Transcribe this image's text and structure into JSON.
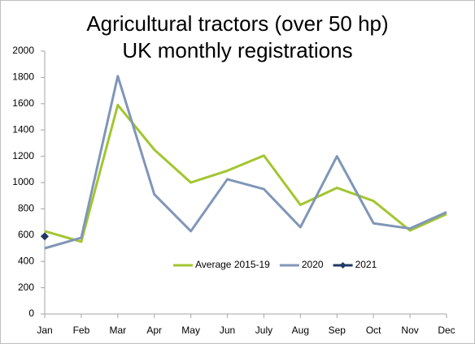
{
  "chart_data": {
    "type": "line",
    "title": "Agricultural tractors (over 50 hp)",
    "subtitle": "UK monthly registrations",
    "categories": [
      "Jan",
      "Feb",
      "Mar",
      "Apr",
      "May",
      "Jun",
      "July",
      "Aug",
      "Sep",
      "Oct",
      "Nov",
      "Dec"
    ],
    "series": [
      {
        "name": "Average 2015-19",
        "color": "#a2c62f",
        "values": [
          630,
          550,
          1590,
          1250,
          1000,
          1090,
          1205,
          830,
          960,
          860,
          635,
          760
        ]
      },
      {
        "name": "2020",
        "color": "#8096b8",
        "values": [
          500,
          580,
          1810,
          910,
          630,
          1025,
          950,
          660,
          1200,
          690,
          650,
          775
        ]
      },
      {
        "name": "2021",
        "color": "#1f3864",
        "marker": "diamond",
        "values": [
          590,
          null,
          null,
          null,
          null,
          null,
          null,
          null,
          null,
          null,
          null,
          null
        ]
      }
    ],
    "ylim": [
      0,
      2000
    ],
    "yticks": [
      0,
      200,
      400,
      600,
      800,
      1000,
      1200,
      1400,
      1600,
      1800,
      2000
    ],
    "grid": false,
    "legend": "inside-bottom"
  }
}
